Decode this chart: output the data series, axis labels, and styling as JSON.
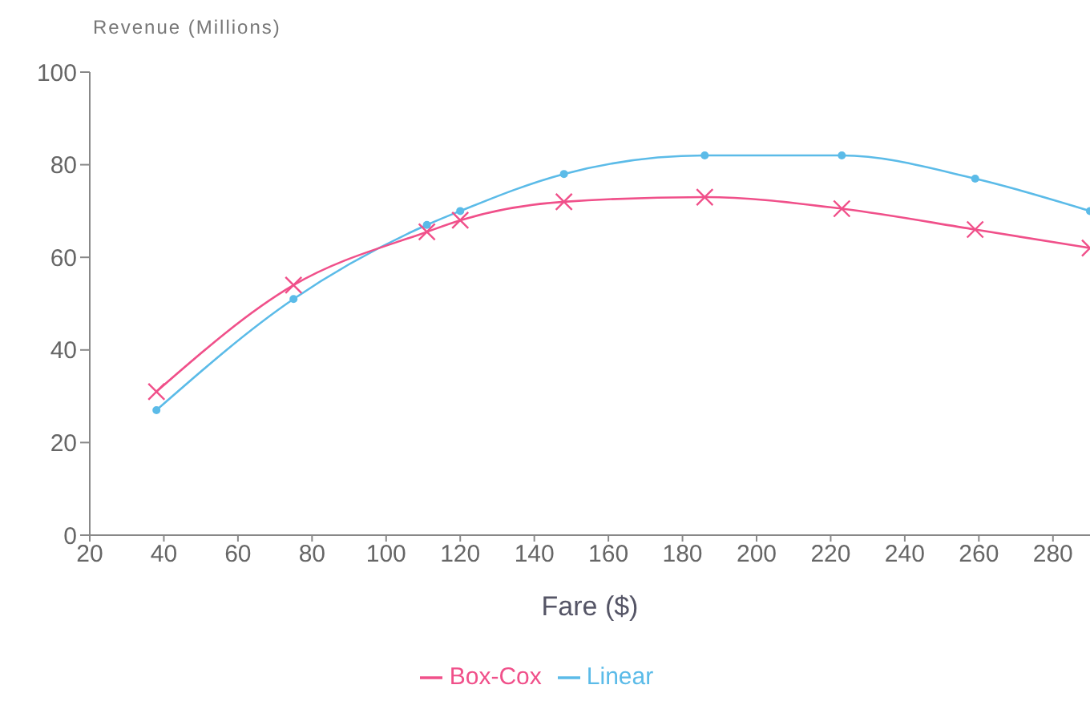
{
  "chart_data": {
    "type": "line",
    "ylabel": "Revenue (Millions)",
    "xlabel": "Fare ($)",
    "x": [
      38,
      75,
      111,
      120,
      148,
      186,
      223,
      259,
      290
    ],
    "series": [
      {
        "name": "Linear",
        "color": "#5bbbe8",
        "marker": "circle",
        "values": [
          27,
          51,
          67,
          70,
          78,
          82,
          82,
          77,
          70
        ]
      },
      {
        "name": "Box-Cox",
        "color": "#f0508a",
        "marker": "cross",
        "values": [
          31,
          54,
          65.5,
          68,
          72,
          73,
          70.5,
          66,
          62
        ]
      }
    ],
    "xlim": [
      20,
      290
    ],
    "xticks": [
      20,
      40,
      60,
      80,
      100,
      120,
      140,
      160,
      180,
      200,
      220,
      240,
      260,
      280
    ],
    "ylim": [
      0,
      100
    ],
    "yticks": [
      0,
      20,
      40,
      60,
      80,
      100
    ],
    "grid": false,
    "legend": "bottom"
  }
}
